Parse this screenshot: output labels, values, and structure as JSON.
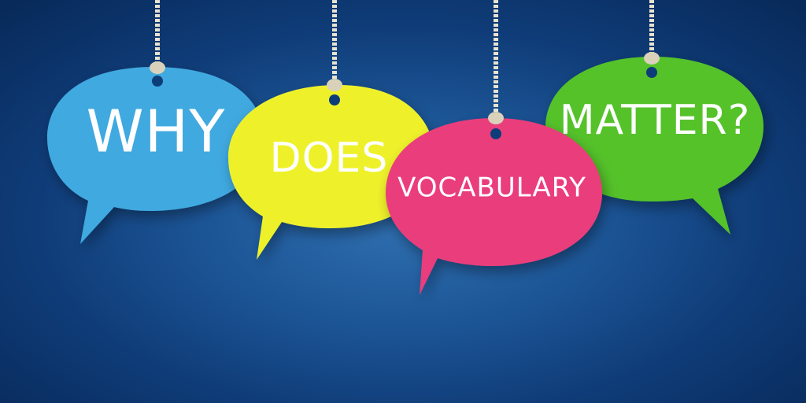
{
  "bubbles": [
    {
      "word": "WHY",
      "color": "#3fa9e0"
    },
    {
      "word": "DOES",
      "color": "#eef12a"
    },
    {
      "word": "VOCABULARY",
      "color": "#ea3d7c"
    },
    {
      "word": "MATTER?",
      "color": "#55c22c"
    }
  ],
  "string_color": "#e8e2d0",
  "background_color": "#1c5596"
}
